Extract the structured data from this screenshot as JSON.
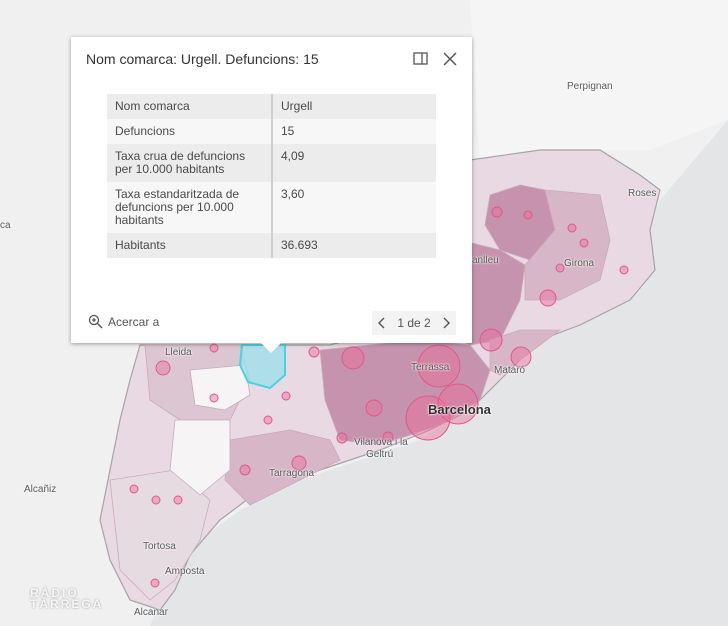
{
  "popup": {
    "title": "Nom comarca: Urgell. Defuncions: 15",
    "rows": [
      {
        "label": "Nom comarca",
        "value": "Urgell"
      },
      {
        "label": "Defuncions",
        "value": "15"
      },
      {
        "label": "Taxa crua de defuncions per 10.000 habitants",
        "value": "4,09"
      },
      {
        "label": "Taxa estandaritzada de defuncions per 10.000 habitants",
        "value": "3,60"
      },
      {
        "label": "Habitants",
        "value": "36.693"
      }
    ],
    "zoom_label": "Acercar a",
    "pager_label": "1 de 2"
  },
  "map": {
    "places": {
      "perpignan": "Perpignan",
      "roses": "Roses",
      "girona": "Girona",
      "granollers_partial": "anlleu",
      "lleida": "Lleida",
      "terrassa": "Terrassa",
      "mataro": "Mataró",
      "barcelona": "Barcelona",
      "vilanova_line1": "Vilanova i la",
      "vilanova_line2": "Geltrú",
      "tarragona": "Tarragona",
      "alcaniz": "Alcañiz",
      "tortosa": "Tortosa",
      "amposta": "Amposta",
      "alcanar": "Alcanar",
      "left_partial": "ca"
    },
    "colors": {
      "land": "#f2f2f2",
      "sea": "#e4e6e8",
      "choropleth_light": "#e9d9e2",
      "choropleth_mid": "#d7b6c7",
      "choropleth_dark": "#c693ae",
      "bubble": "#ec6f98",
      "selected": "#7fdce8"
    }
  },
  "watermark": {
    "line1": "RÀDIO",
    "line2": "TÀRREGA"
  }
}
